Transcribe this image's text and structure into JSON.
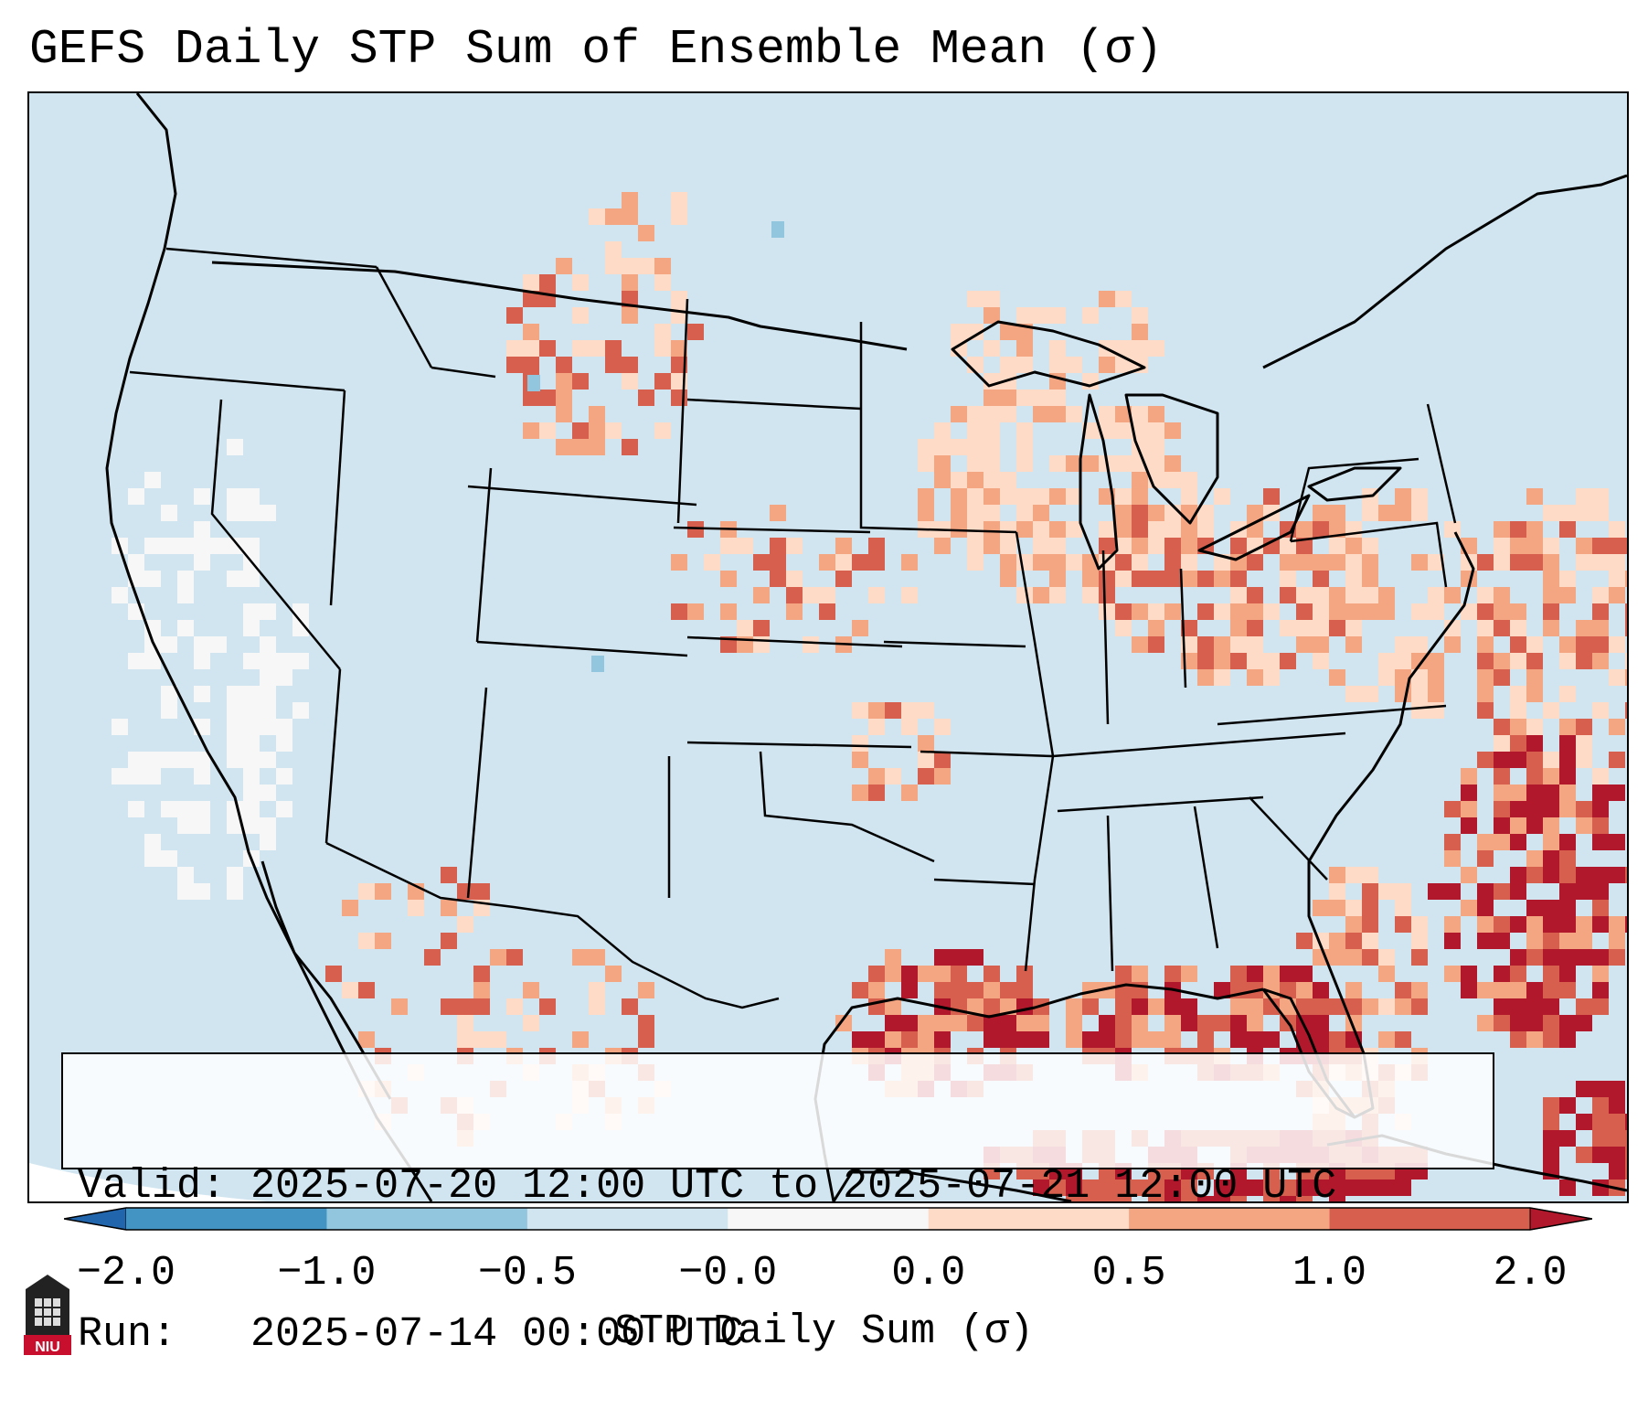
{
  "title": "GEFS Daily STP Sum of Ensemble Mean (σ)",
  "map": {
    "projection": "Lambert conformal over contiguous United States",
    "ocean_color": "#d1e5f0",
    "land_color": "#d1e5f0",
    "outside_color": "#ffffff",
    "border_color": "#000000"
  },
  "info": {
    "valid_label": "Valid:",
    "valid_value": "2025-07-20 12:00 UTC to 2025-07-21 12:00 UTC",
    "run_label": "Run:",
    "run_value": "2025-07-14 00:00 UTC"
  },
  "colorbar": {
    "label": "STP Daily Sum (σ)",
    "ticks": [
      "−2.0",
      "−1.0",
      "−0.5",
      "−0.0",
      "0.0",
      "0.5",
      "1.0",
      "2.0"
    ],
    "under_color": "#2166ac",
    "over_color": "#b2182b",
    "bins": [
      {
        "from": -2.0,
        "to": -1.0,
        "color": "#4393c3"
      },
      {
        "from": -1.0,
        "to": -0.5,
        "color": "#92c5de"
      },
      {
        "from": -0.5,
        "to": -0.0,
        "color": "#d1e5f0"
      },
      {
        "from": -0.0,
        "to": 0.0,
        "color": "#f7f7f7"
      },
      {
        "from": 0.0,
        "to": 0.5,
        "color": "#fddbc7"
      },
      {
        "from": 0.5,
        "to": 1.0,
        "color": "#f4a582"
      },
      {
        "from": 1.0,
        "to": 2.0,
        "color": "#d6604d"
      }
    ]
  },
  "logo": {
    "text": "NIU",
    "name": "Northern Illinois University logo"
  },
  "regions": [
    {
      "name": "montana-dakotas",
      "level": "moderate"
    },
    {
      "name": "kansas-nebraska",
      "level": "moderate"
    },
    {
      "name": "upper-midwest-great-lakes",
      "level": "light-to-moderate"
    },
    {
      "name": "ohio-valley-mid-atlantic",
      "level": "moderate"
    },
    {
      "name": "gulf-coast-florida",
      "level": "high"
    },
    {
      "name": "western-atlantic",
      "level": "high"
    },
    {
      "name": "texas-gulf-offshore",
      "level": "high"
    }
  ]
}
